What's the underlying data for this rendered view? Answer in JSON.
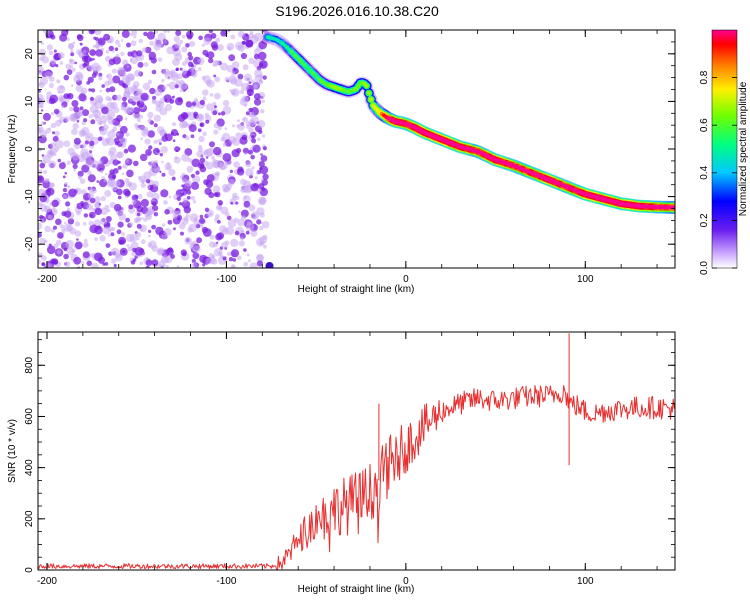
{
  "title": "S196.2026.016.10.38.C20",
  "colors": {
    "snr_line": "#e83030",
    "noise_purple": "#7a1ee0",
    "noise_light": "#c9a8f2",
    "axis": "#000000"
  },
  "chart_data": [
    {
      "type": "heatmap",
      "title": "S196.2026.016.10.38.C20",
      "xlabel": "Height of straight line (km)",
      "ylabel": "Frequency (Hz)",
      "xlim": [
        -205,
        150
      ],
      "ylim": [
        -25,
        25
      ],
      "x_ticks": [
        -200,
        -100,
        0,
        100
      ],
      "x_tick_labels": [
        "-200",
        "-100",
        "0",
        "100"
      ],
      "y_ticks": [
        -20,
        -10,
        0,
        10,
        20
      ],
      "y_tick_labels": [
        "-20",
        "-10",
        "0",
        "10",
        "20"
      ],
      "noise_region": {
        "x_range": [
          -205,
          -78
        ],
        "y_range": [
          -25,
          25
        ]
      },
      "ridge": {
        "x": [
          -77,
          -72,
          -68,
          -64,
          -60,
          -56,
          -52,
          -48,
          -44,
          -40,
          -36,
          -32,
          -28,
          -25,
          -22,
          -20,
          -18,
          -14,
          -10,
          -6,
          -2,
          0,
          5,
          10,
          20,
          30,
          40,
          50,
          60,
          70,
          80,
          90,
          100,
          110,
          120,
          130,
          140,
          150
        ],
        "y": [
          23.5,
          23,
          22,
          20.5,
          19,
          17.5,
          16,
          14.5,
          13.5,
          13,
          12.5,
          12,
          12.5,
          14,
          13.5,
          11,
          9,
          7.5,
          6.5,
          5.8,
          5.5,
          5.3,
          4.5,
          3.5,
          2,
          0.5,
          -0.5,
          -2.3,
          -3.5,
          -5,
          -6.5,
          -8,
          -9.5,
          -10.5,
          -11.5,
          -12,
          -12.2,
          -12.3
        ],
        "amplitude": [
          0.35,
          0.3,
          0.35,
          0.4,
          0.45,
          0.4,
          0.4,
          0.45,
          0.45,
          0.5,
          0.5,
          0.45,
          0.5,
          0.5,
          0.5,
          0.55,
          0.6,
          0.65,
          0.85,
          0.95,
          0.95,
          0.9,
          0.95,
          0.95,
          0.95,
          0.95,
          0.9,
          0.95,
          0.9,
          0.9,
          0.95,
          0.9,
          0.95,
          0.95,
          0.95,
          0.95,
          0.9,
          0.85
        ]
      },
      "colorbar": {
        "label": "Normalized spectral amplitude",
        "range": [
          0,
          1
        ],
        "ticks": [
          0,
          0.2,
          0.4,
          0.6,
          0.8
        ],
        "tick_labels": [
          "0.0",
          "0.2",
          "0.4",
          "0.6",
          "0.8"
        ]
      }
    },
    {
      "type": "line",
      "xlabel": "Height of straight line (km)",
      "ylabel": "SNR (10 * v/v)",
      "xlim": [
        -205,
        150
      ],
      "ylim": [
        0,
        930
      ],
      "x_ticks": [
        -200,
        -100,
        0,
        100
      ],
      "x_tick_labels": [
        "-200",
        "-100",
        "0",
        "100"
      ],
      "y_ticks": [
        0,
        200,
        400,
        600,
        800
      ],
      "y_tick_labels": [
        "0",
        "200",
        "400",
        "600",
        "800"
      ],
      "series": [
        {
          "name": "SNR",
          "x": [
            -205,
            -180,
            -150,
            -120,
            -90,
            -75,
            -70,
            -65,
            -60,
            -50,
            -40,
            -30,
            -20,
            -15,
            -10,
            0,
            10,
            20,
            30,
            40,
            50,
            60,
            70,
            80,
            88,
            92,
            96,
            100,
            105,
            110,
            120,
            130,
            140,
            150
          ],
          "y": [
            15,
            15,
            15,
            15,
            15,
            15,
            25,
            60,
            120,
            200,
            240,
            260,
            300,
            350,
            400,
            480,
            560,
            620,
            650,
            670,
            660,
            670,
            680,
            680,
            700,
            650,
            640,
            620,
            610,
            620,
            630,
            635,
            635,
            630
          ],
          "spikes": [
            {
              "x": -15,
              "y": 650
            },
            {
              "x": 91,
              "y": 925
            },
            {
              "x": 91,
              "y": 410
            }
          ]
        }
      ]
    }
  ]
}
